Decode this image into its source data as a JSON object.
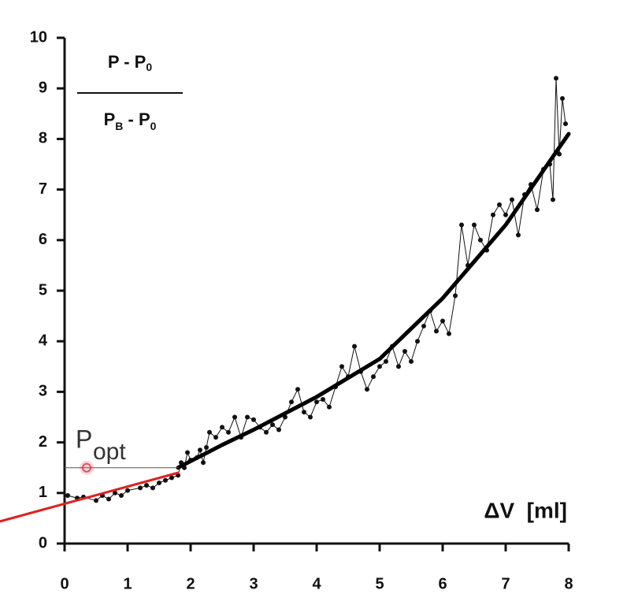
{
  "chart_data": {
    "type": "line",
    "y_label": {
      "numerator": [
        "P - P",
        "0"
      ],
      "denominator": [
        "P",
        "B",
        " - P",
        "0"
      ]
    },
    "x_label": "ΔV  [ml]",
    "annotation": {
      "text": "P",
      "sub": "opt",
      "x": 0.35,
      "y": 1.5,
      "color": "#e03040"
    },
    "xlim": [
      0,
      8
    ],
    "ylim": [
      0,
      10
    ],
    "xticks": [
      0,
      1,
      2,
      3,
      4,
      5,
      6,
      7,
      8
    ],
    "yticks": [
      0,
      1,
      2,
      3,
      4,
      5,
      6,
      7,
      8,
      9,
      10
    ],
    "series": [
      {
        "color": "#111111",
        "width": 1,
        "markers": true,
        "x": [
          0.05,
          0.2,
          0.3,
          0.5,
          0.6,
          0.7,
          0.8,
          0.9,
          1.0,
          1.2,
          1.3,
          1.4,
          1.5,
          1.6,
          1.7,
          1.8,
          1.85,
          1.9,
          1.95,
          2.0,
          2.1,
          2.15,
          2.2,
          2.25,
          2.3,
          2.4,
          2.5,
          2.6,
          2.7,
          2.8,
          2.9,
          3.0,
          3.1,
          3.2,
          3.3,
          3.4,
          3.5,
          3.6,
          3.7,
          3.8,
          3.9,
          4.0,
          4.1,
          4.2,
          4.3,
          4.4,
          4.5,
          4.6,
          4.7,
          4.8,
          4.9,
          5.0,
          5.1,
          5.2,
          5.3,
          5.4,
          5.5,
          5.6,
          5.7,
          5.8,
          5.9,
          6.0,
          6.1,
          6.2,
          6.3,
          6.4,
          6.5,
          6.6,
          6.7,
          6.8,
          6.9,
          7.0,
          7.1,
          7.2,
          7.3,
          7.4,
          7.5,
          7.6,
          7.7,
          7.75,
          7.8,
          7.85,
          7.9,
          7.95
        ],
        "values": [
          0.95,
          0.9,
          0.92,
          0.85,
          0.95,
          0.88,
          1.0,
          0.95,
          1.05,
          1.1,
          1.15,
          1.1,
          1.2,
          1.25,
          1.3,
          1.35,
          1.6,
          1.5,
          1.8,
          1.65,
          1.7,
          1.85,
          1.6,
          1.9,
          2.2,
          2.1,
          2.3,
          2.2,
          2.5,
          2.1,
          2.5,
          2.45,
          2.3,
          2.2,
          2.35,
          2.25,
          2.5,
          2.8,
          3.05,
          2.6,
          2.5,
          2.8,
          2.85,
          2.7,
          3.1,
          3.5,
          3.3,
          3.9,
          3.4,
          3.05,
          3.3,
          3.5,
          3.6,
          3.9,
          3.5,
          3.8,
          3.6,
          4.0,
          4.3,
          4.6,
          4.2,
          4.4,
          4.15,
          4.9,
          6.3,
          5.5,
          6.3,
          6.0,
          5.8,
          6.5,
          6.7,
          6.5,
          6.8,
          6.1,
          6.9,
          7.1,
          6.6,
          7.4,
          7.5,
          6.8,
          9.2,
          7.7,
          8.8,
          8.3
        ]
      },
      {
        "color": "#000000",
        "width": 5,
        "markers": false,
        "x": [
          1.8,
          2.5,
          3,
          4,
          5,
          6,
          7,
          8
        ],
        "values": [
          1.5,
          1.95,
          2.25,
          2.9,
          3.65,
          4.85,
          6.3,
          8.1
        ]
      },
      {
        "color": "#e02020",
        "width": 3,
        "markers": false,
        "x": [
          -1.02,
          1.8
        ],
        "values": [
          0.44,
          1.4
        ]
      },
      {
        "color": "#555555",
        "width": 1,
        "markers": false,
        "x": [
          0,
          1.8
        ],
        "values": [
          1.5,
          1.5
        ]
      }
    ]
  }
}
